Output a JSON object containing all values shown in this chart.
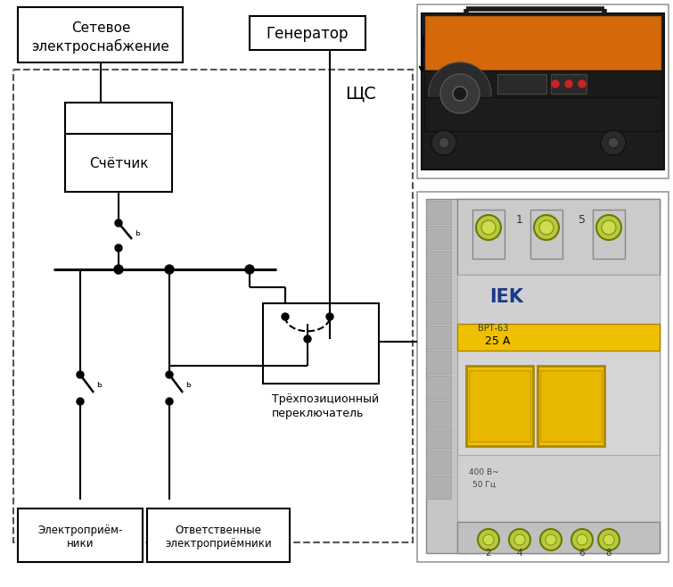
{
  "bg_color": "#ffffff",
  "fig_width": 7.55,
  "fig_height": 6.58,
  "label_setevy": "Сетевое\nэлектроснабжение",
  "label_generator": "Генератор",
  "label_schetchik": "Счётчик",
  "label_shchS": "ЩС",
  "label_3pos": "Трёхпозиционный\nпереключатель",
  "label_electro1": "Электроприём-\nники",
  "label_electro2": "Ответственные\nэлектроприёмники",
  "line_color": "#000000",
  "gen_orange": "#D4680A",
  "gen_black": "#1a1a1a",
  "gen_dark": "#2d2d2d",
  "iek_gray": "#c8c8c8",
  "iek_lgray": "#d8d8d8",
  "iek_yellow": "#f0c000",
  "iek_blue": "#1a3a8a",
  "iek_dgray": "#909090"
}
